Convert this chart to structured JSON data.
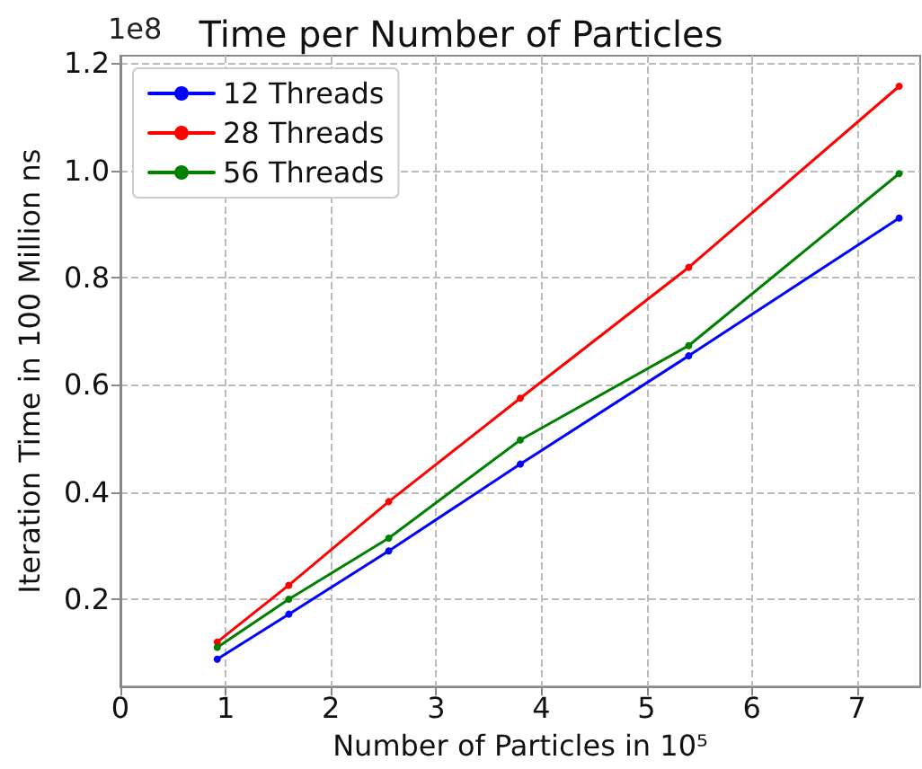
{
  "chart_data": {
    "type": "line",
    "title": "Time per Number of Particles",
    "xlabel": "Number of Particles in 10⁵",
    "ylabel": "Iteration Time in 100 Million ns",
    "annotations": [
      "1e8"
    ],
    "x": [
      0.92,
      1.6,
      2.55,
      3.8,
      5.4,
      7.4
    ],
    "series": [
      {
        "name": "12 Threads",
        "color": "#0000ff",
        "values": [
          0.088,
          0.172,
          0.29,
          0.452,
          0.654,
          0.911
        ]
      },
      {
        "name": "28 Threads",
        "color": "#ff0000",
        "values": [
          0.12,
          0.226,
          0.382,
          0.575,
          0.819,
          1.157
        ]
      },
      {
        "name": "56 Threads",
        "color": "#008000",
        "values": [
          0.11,
          0.2,
          0.314,
          0.497,
          0.673,
          0.994
        ]
      }
    ],
    "xlim": [
      0,
      7.6
    ],
    "xticks": [
      0,
      1,
      2,
      3,
      4,
      5,
      6,
      7
    ],
    "ylim": [
      0.037,
      1.214
    ],
    "yticks": [
      0.2,
      0.4,
      0.6,
      0.8,
      {
        "value": 1,
        "label": "1.0"
      },
      {
        "value": 1.2,
        "label": "1.2"
      }
    ],
    "grid": true,
    "legend": "top left",
    "marker": "circle",
    "line_style": "solid"
  }
}
